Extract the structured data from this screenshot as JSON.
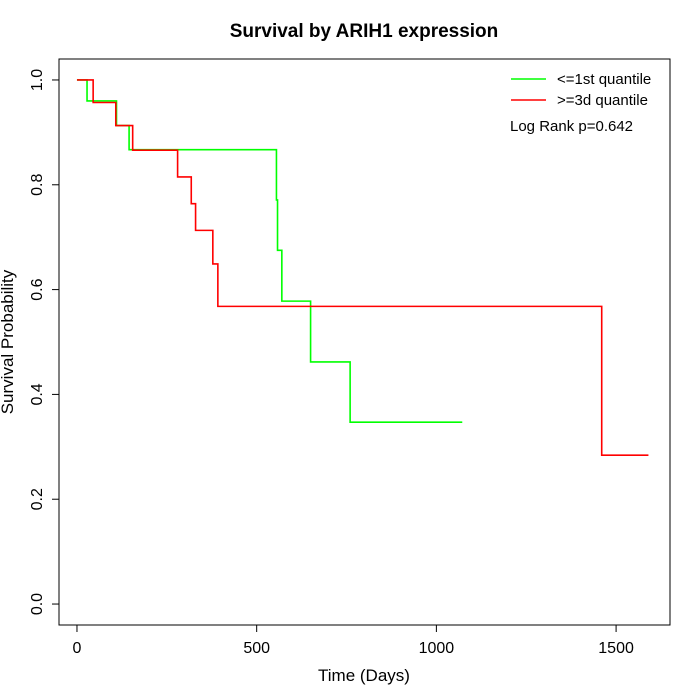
{
  "chart_data": {
    "type": "line",
    "step": true,
    "title": "Survival by ARIH1 expression",
    "xlabel": "Time (Days)",
    "ylabel": "Survival Probability",
    "xlim": [
      -50,
      1650
    ],
    "ylim": [
      -0.04,
      1.04
    ],
    "xticks": [
      0,
      500,
      1000,
      1500
    ],
    "yticks": [
      0.0,
      0.2,
      0.4,
      0.6,
      0.8,
      1.0
    ],
    "xtick_labels": [
      "0",
      "500",
      "1000",
      "1500"
    ],
    "ytick_labels": [
      "0.0",
      "0.2",
      "0.4",
      "0.6",
      "0.8",
      "1.0"
    ],
    "grid": false,
    "legend_position": "top-right",
    "annotation": "Log Rank p=0.642",
    "series": [
      {
        "name": "<=1st quantile",
        "color": "#00ff00",
        "x": [
          0,
          28,
          110,
          145,
          555,
          558,
          562,
          570,
          650,
          760,
          1072
        ],
        "y": [
          1.0,
          0.96,
          0.913,
          0.867,
          0.771,
          0.675,
          0.675,
          0.578,
          0.462,
          0.347,
          0.347
        ]
      },
      {
        "name": ">=3d quantile",
        "color": "#ff0000",
        "x": [
          0,
          45,
          108,
          155,
          280,
          318,
          330,
          378,
          392,
          1460,
          1590
        ],
        "y": [
          1.0,
          0.957,
          0.913,
          0.866,
          0.815,
          0.764,
          0.713,
          0.649,
          0.568,
          0.284,
          0.284
        ]
      }
    ]
  }
}
